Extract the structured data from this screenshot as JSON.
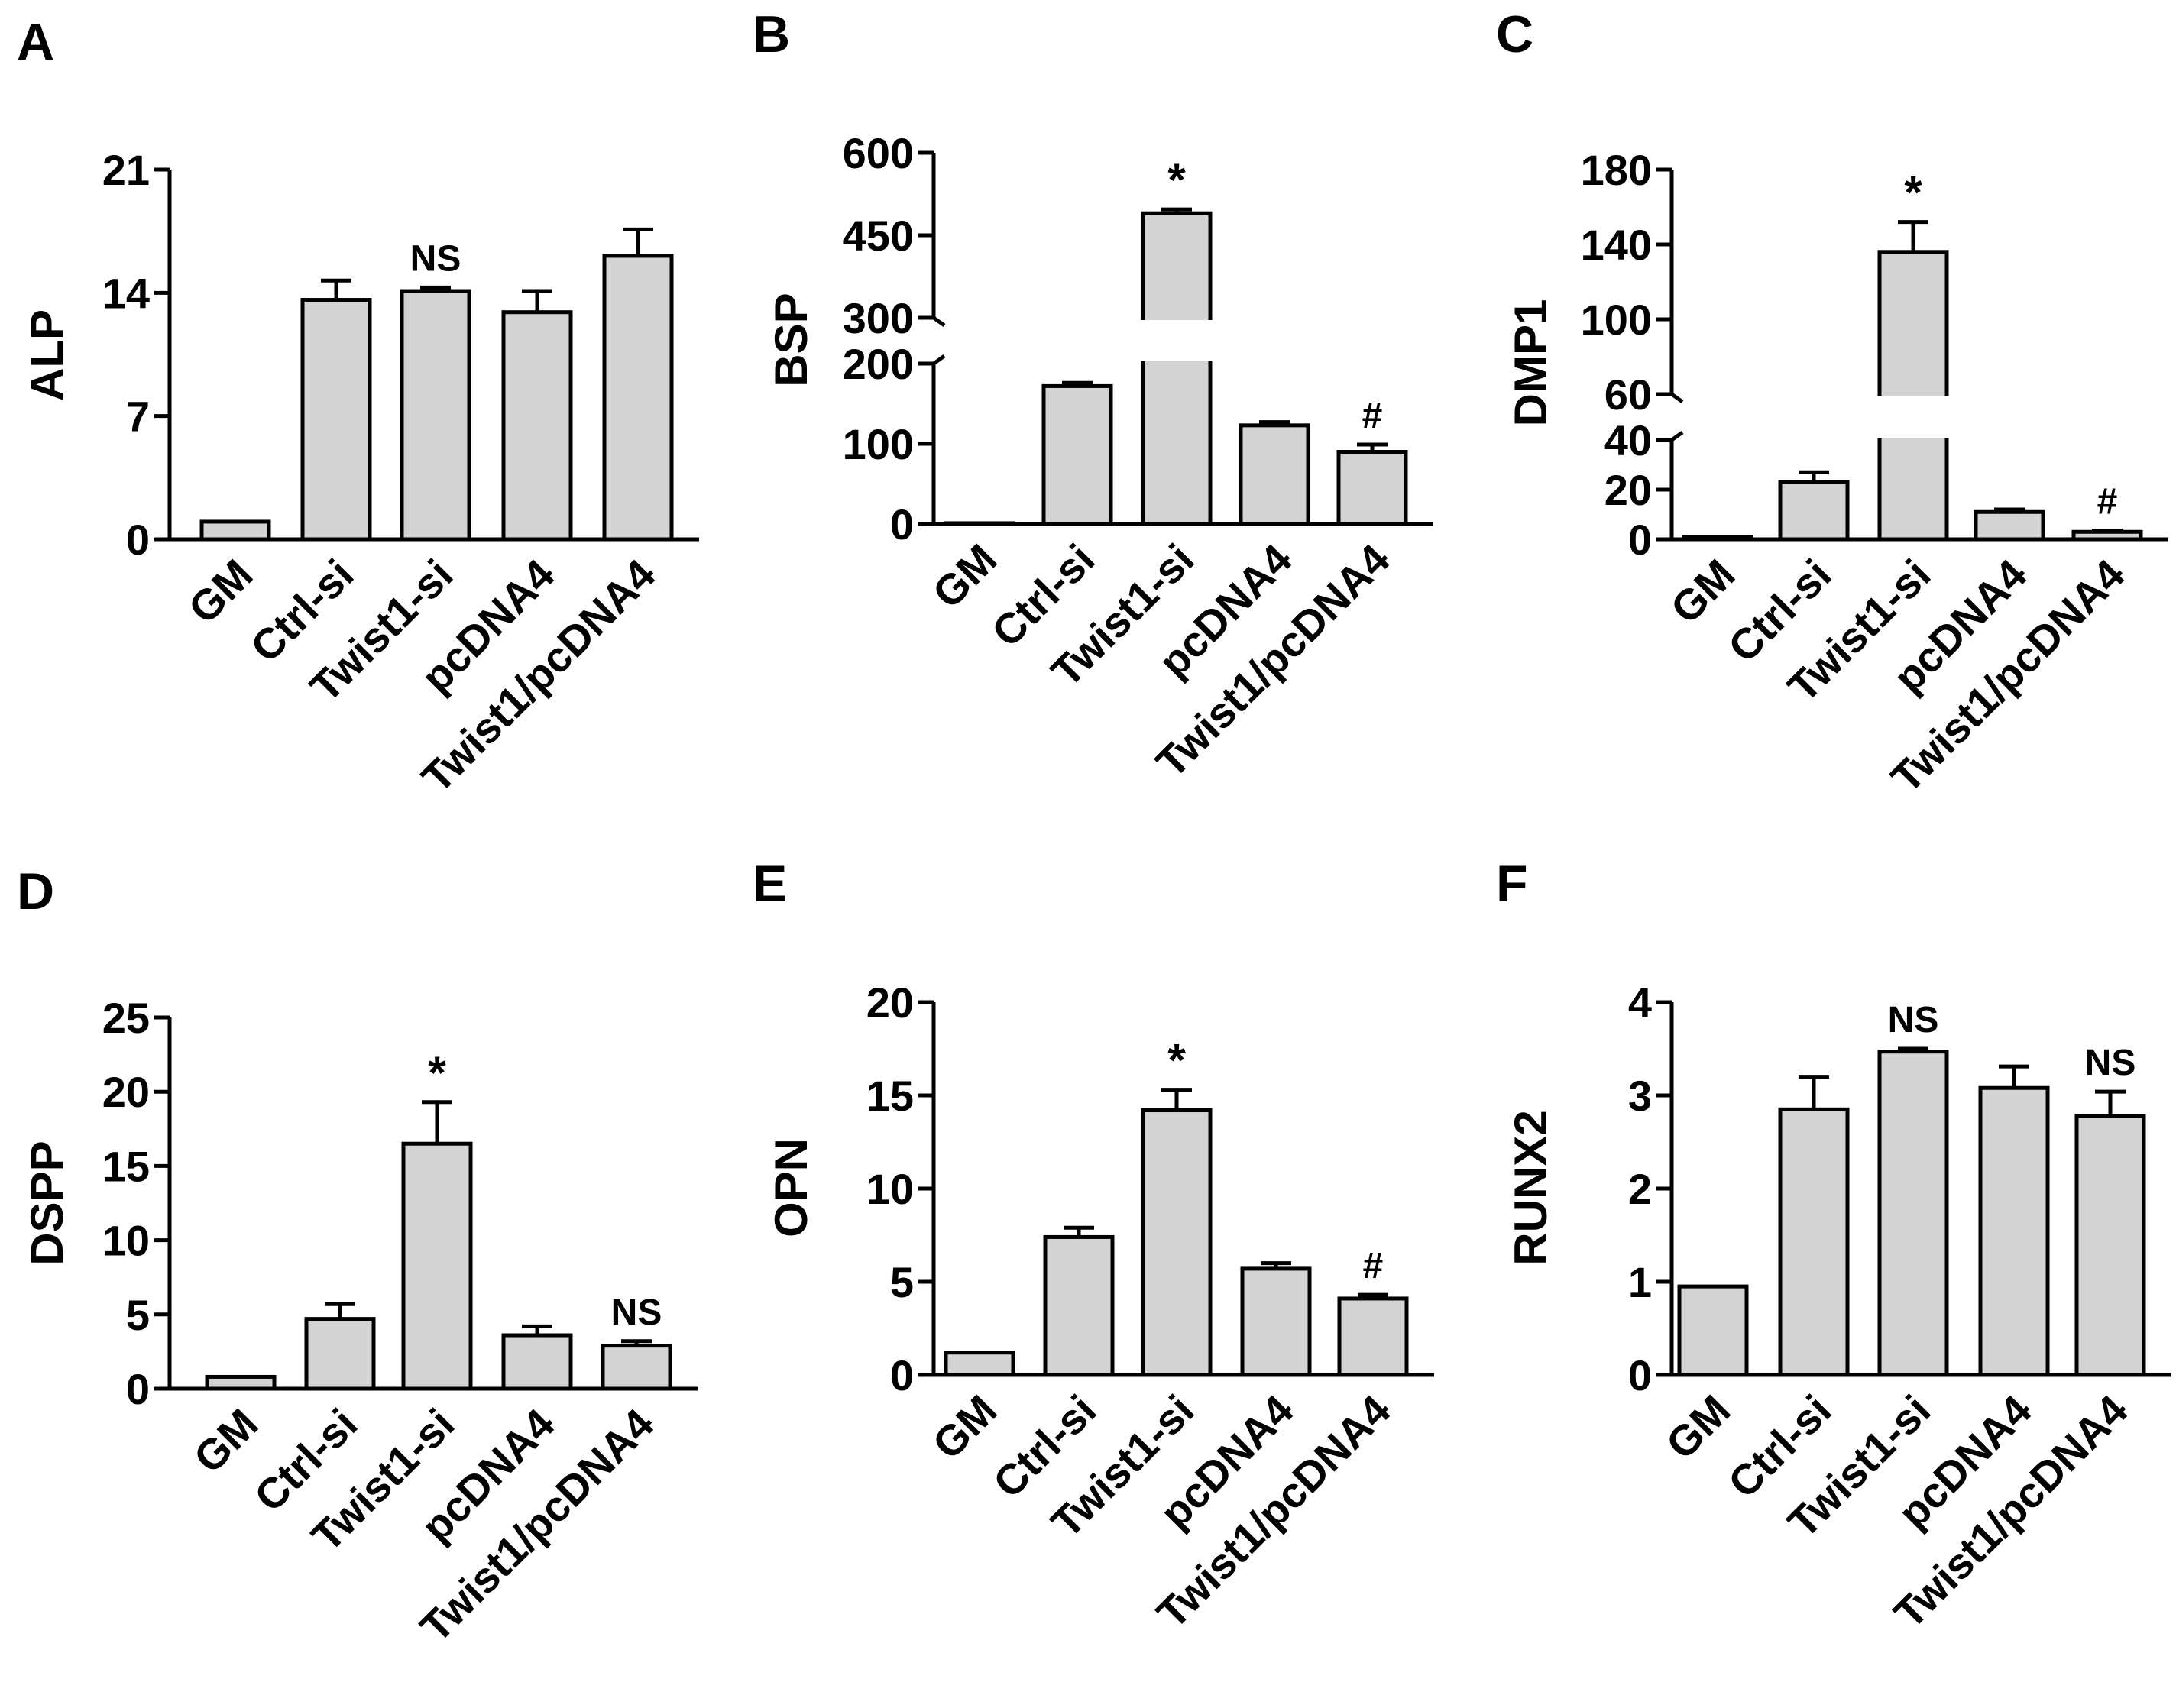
{
  "chart_data": [
    {
      "panel": "A",
      "type": "bar",
      "ylabel": "ALP",
      "categories": [
        "GM",
        "Ctrl-si",
        "Twist1-si",
        "pcDNA4",
        "Twist1/pcDNA4"
      ],
      "values": [
        1.0,
        13.6,
        14.1,
        12.9,
        16.1
      ],
      "errors": [
        0,
        1.1,
        0.2,
        1.2,
        1.5
      ],
      "annotations": [
        "",
        "",
        "NS",
        "",
        ""
      ],
      "yticks": [
        0,
        7,
        14,
        21
      ],
      "ylim": [
        0,
        21
      ]
    },
    {
      "panel": "B",
      "type": "bar",
      "ylabel": "BSP",
      "categories": [
        "GM",
        "Ctrl-si",
        "Twist1-si",
        "pcDNA4",
        "Twist1/pcDNA4"
      ],
      "values": [
        1,
        172,
        490,
        123,
        90
      ],
      "errors": [
        0,
        4,
        7,
        4,
        9
      ],
      "annotations": [
        "",
        "",
        "*",
        "",
        "#"
      ],
      "yticks": [
        0,
        100,
        200,
        300,
        450,
        600
      ],
      "axis_break": {
        "lower": [
          0,
          200
        ],
        "upper": [
          300,
          600
        ]
      }
    },
    {
      "panel": "C",
      "type": "bar",
      "ylabel": "DMP1",
      "categories": [
        "GM",
        "Ctrl-si",
        "Twist1-si",
        "pcDNA4",
        "Twist1/pcDNA4"
      ],
      "values": [
        1,
        23,
        136,
        11,
        3
      ],
      "errors": [
        0,
        4,
        16,
        1,
        0.5
      ],
      "annotations": [
        "",
        "",
        "*",
        "",
        "#"
      ],
      "yticks": [
        0,
        20,
        40,
        60,
        100,
        140,
        180
      ],
      "axis_break": {
        "lower": [
          0,
          40
        ],
        "upper": [
          60,
          180
        ]
      }
    },
    {
      "panel": "D",
      "type": "bar",
      "ylabel": "DSPP",
      "categories": [
        "GM",
        "Ctrl-si",
        "Twist1-si",
        "pcDNA4",
        "Twist1/pcDNA4"
      ],
      "values": [
        0.8,
        4.7,
        16.5,
        3.6,
        2.9
      ],
      "errors": [
        0,
        1.0,
        2.8,
        0.6,
        0.3
      ],
      "annotations": [
        "",
        "",
        "*",
        "",
        "NS"
      ],
      "yticks": [
        0,
        5,
        10,
        15,
        20,
        25
      ],
      "ylim": [
        0,
        25
      ]
    },
    {
      "panel": "E",
      "type": "bar",
      "ylabel": "OPN",
      "categories": [
        "GM",
        "Ctrl-si",
        "Twist1-si",
        "pcDNA4",
        "Twist1/pcDNA4"
      ],
      "values": [
        1.2,
        7.4,
        14.2,
        5.7,
        4.1
      ],
      "errors": [
        0,
        0.5,
        1.1,
        0.3,
        0.2
      ],
      "annotations": [
        "",
        "",
        "*",
        "",
        "#"
      ],
      "yticks": [
        0,
        5,
        10,
        15,
        20
      ],
      "ylim": [
        0,
        20
      ]
    },
    {
      "panel": "F",
      "type": "bar",
      "ylabel": "RUNX2",
      "categories": [
        "GM",
        "Ctrl-si",
        "Twist1-si",
        "pcDNA4",
        "Twist1/pcDNA4"
      ],
      "values": [
        0.95,
        2.85,
        3.47,
        3.08,
        2.78
      ],
      "errors": [
        0,
        0.35,
        0.03,
        0.23,
        0.26
      ],
      "annotations": [
        "",
        "",
        "NS",
        "",
        "NS"
      ],
      "yticks": [
        0,
        1,
        2,
        3,
        4
      ],
      "ylim": [
        0,
        4
      ]
    }
  ],
  "style": {
    "bar_fill": "#d3d3d3",
    "bar_stroke": "#000000",
    "axis_color": "#000000"
  }
}
